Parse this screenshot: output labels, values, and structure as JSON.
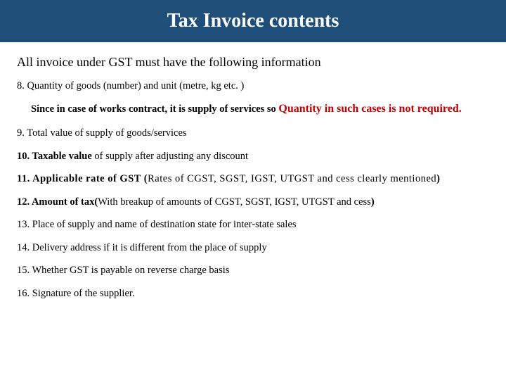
{
  "header": {
    "title": "Tax Invoice contents",
    "bg": "#1f4e79",
    "fg": "#ffffff"
  },
  "intro": "All invoice under GST must have the following information",
  "item8": {
    "prefix": "8. Quantity of goods (number) and unit (metre, kg etc. )",
    "note_plain": "Since in case of works contract, it is supply of services so ",
    "note_red": "Quantity in such cases is not required",
    "note_red_period": "."
  },
  "item9": "9. Total value of supply of goods/services",
  "item10": {
    "bold": "10. Taxable value ",
    "rest": "of supply after adjusting any discount"
  },
  "item11": {
    "bold": "11. Applicable rate of GST (",
    "rest": "Rates of CGST, SGST, IGST, UTGST and cess clearly mentioned",
    "close": ")"
  },
  "item12": {
    "bold": "12. Amount of tax(",
    "rest": "With breakup of amounts of CGST, SGST, IGST, UTGST and cess",
    "close": ")"
  },
  "item13": "13. Place of supply and name of destination state for inter-state sales",
  "item14": "14. Delivery address if it is different from the place of supply",
  "item15": "15. Whether GST is payable on reverse charge basis",
  "item16": "16. Signature of the supplier."
}
